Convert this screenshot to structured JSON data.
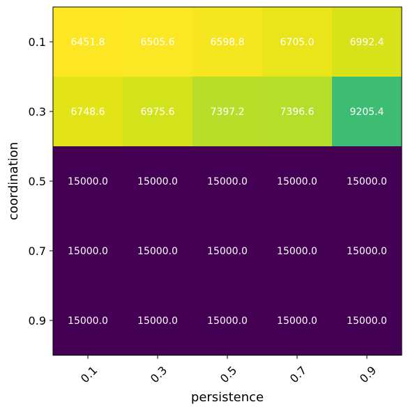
{
  "chart_data": {
    "type": "heatmap",
    "title": "",
    "xlabel": "persistence",
    "ylabel": "coordination",
    "x_categories": [
      "0.1",
      "0.3",
      "0.5",
      "0.7",
      "0.9"
    ],
    "y_categories": [
      "0.1",
      "0.3",
      "0.5",
      "0.7",
      "0.9"
    ],
    "colormap": "viridis",
    "color_scale": "reversed (low value = yellow, high value = purple)",
    "values": [
      [
        6451.8,
        6505.6,
        6598.8,
        6705.0,
        6992.4
      ],
      [
        6748.6,
        6975.6,
        7397.2,
        7396.6,
        9205.4
      ],
      [
        15000.0,
        15000.0,
        15000.0,
        15000.0,
        15000.0
      ],
      [
        15000.0,
        15000.0,
        15000.0,
        15000.0,
        15000.0
      ],
      [
        15000.0,
        15000.0,
        15000.0,
        15000.0,
        15000.0
      ]
    ],
    "value_labels": [
      [
        "6451.8",
        "6505.6",
        "6598.8",
        "6705.0",
        "6992.4"
      ],
      [
        "6748.6",
        "6975.6",
        "7397.2",
        "7396.6",
        "9205.4"
      ],
      [
        "15000.0",
        "15000.0",
        "15000.0",
        "15000.0",
        "15000.0"
      ],
      [
        "15000.0",
        "15000.0",
        "15000.0",
        "15000.0",
        "15000.0"
      ],
      [
        "15000.0",
        "15000.0",
        "15000.0",
        "15000.0",
        "15000.0"
      ]
    ],
    "cell_colors": [
      [
        "#fde725",
        "#fbe723",
        "#f5e61f",
        "#eae51a",
        "#d7e219"
      ],
      [
        "#e2e418",
        "#d2e21b",
        "#b8de29",
        "#b5de2b",
        "#3dbc74"
      ],
      [
        "#440154",
        "#440154",
        "#440154",
        "#440154",
        "#440154"
      ],
      [
        "#440154",
        "#440154",
        "#440154",
        "#440154",
        "#440154"
      ],
      [
        "#440154",
        "#440154",
        "#440154",
        "#440154",
        "#440154"
      ]
    ],
    "label_color": "#ffffff"
  }
}
